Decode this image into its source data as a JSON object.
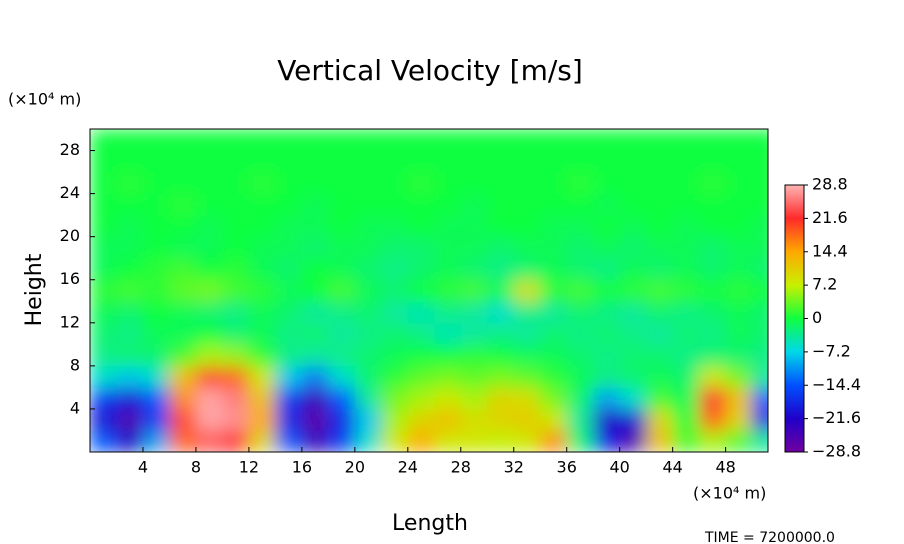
{
  "chart_data": {
    "type": "heatmap",
    "title": "Vertical Velocity [m/s]",
    "xlabel": "Length",
    "ylabel": "Height",
    "xunit": "(×10⁴ m)",
    "yunit": "(×10⁴ m)",
    "footer": "TIME = 7200000.0",
    "xlim": [
      0,
      51.2
    ],
    "ylim": [
      0,
      30
    ],
    "xticks": [
      4,
      8,
      12,
      16,
      20,
      24,
      28,
      32,
      36,
      40,
      44,
      48
    ],
    "yticks": [
      4,
      8,
      12,
      16,
      20,
      24,
      28
    ],
    "x": [
      1,
      3,
      5,
      7,
      9,
      11,
      13,
      15,
      17,
      19,
      21,
      23,
      25,
      27,
      29,
      31,
      33,
      35,
      37,
      39,
      41,
      43,
      45,
      47,
      49,
      51
    ],
    "y": [
      1,
      3,
      5,
      7,
      9,
      11,
      13,
      15,
      17,
      19,
      21,
      23,
      25,
      27,
      29
    ],
    "z": [
      [
        -14,
        -22,
        -10,
        18,
        24,
        22,
        10,
        -14,
        -24,
        -16,
        -6,
        8,
        14,
        8,
        8,
        7,
        8,
        16,
        -2,
        -18,
        -26,
        12,
        2,
        6,
        2,
        -4
      ],
      [
        -20,
        -26,
        -16,
        20,
        28,
        27,
        14,
        -18,
        -27,
        -18,
        -8,
        6,
        10,
        12,
        9,
        10,
        11,
        8,
        -4,
        -22,
        -20,
        10,
        0,
        18,
        10,
        -18
      ],
      [
        -16,
        -20,
        -14,
        16,
        28,
        26,
        12,
        -16,
        -24,
        -14,
        -4,
        4,
        6,
        8,
        6,
        10,
        9,
        4,
        -2,
        -10,
        -6,
        2,
        -1,
        22,
        12,
        -14
      ],
      [
        -6,
        -8,
        -6,
        12,
        20,
        18,
        8,
        -8,
        -12,
        -6,
        -2,
        1,
        3,
        4,
        3,
        4,
        3,
        1,
        -1,
        -3,
        -2,
        -1,
        -2,
        8,
        4,
        -4
      ],
      [
        -3,
        -2,
        -2,
        2,
        6,
        5,
        1,
        -3,
        -4,
        -3,
        -2,
        -1,
        0,
        0,
        1,
        0,
        -1,
        -1,
        -2,
        -3,
        -2,
        -2,
        -3,
        -2,
        -2,
        -3
      ],
      [
        -2,
        -3,
        -1,
        -1,
        0,
        -2,
        -1,
        -3,
        -2,
        -4,
        -3,
        -2,
        -3,
        -5,
        -4,
        -3,
        -4,
        -2,
        -3,
        -2,
        -3,
        -4,
        -2,
        -3,
        -1,
        -2
      ],
      [
        -1,
        -2,
        0,
        -1,
        -2,
        -3,
        -1,
        -2,
        -4,
        -3,
        -2,
        -4,
        -5,
        -3,
        -4,
        -6,
        -3,
        -4,
        -2,
        -3,
        -4,
        -2,
        -3,
        -2,
        -1,
        -2
      ],
      [
        1,
        2,
        1,
        3,
        4,
        2,
        1,
        -1,
        0,
        2,
        -1,
        -2,
        0,
        1,
        2,
        -1,
        9,
        1,
        2,
        0,
        1,
        2,
        1,
        0,
        1,
        0
      ],
      [
        -1,
        0,
        1,
        2,
        0,
        1,
        -1,
        -2,
        0,
        -1,
        -2,
        -3,
        -2,
        -1,
        -2,
        -3,
        -2,
        -1,
        -2,
        -3,
        -1,
        -2,
        -1,
        -2,
        -1,
        -2
      ],
      [
        -1,
        -1,
        0,
        -1,
        -1,
        0,
        -1,
        -1,
        -2,
        -1,
        -1,
        -2,
        -2,
        -1,
        -1,
        -2,
        -1,
        -1,
        -2,
        -1,
        -2,
        -1,
        -1,
        -2,
        -1,
        -1
      ],
      [
        0,
        -1,
        0,
        0,
        -1,
        0,
        0,
        -1,
        -1,
        0,
        -1,
        -1,
        0,
        -1,
        -1,
        0,
        0,
        -1,
        -1,
        0,
        -1,
        0,
        -1,
        0,
        0,
        -1
      ],
      [
        0,
        0,
        0,
        1,
        0,
        0,
        0,
        0,
        -1,
        0,
        0,
        0,
        0,
        0,
        -1,
        0,
        0,
        0,
        0,
        -1,
        0,
        0,
        0,
        0,
        0,
        0
      ],
      [
        0,
        1,
        0,
        0,
        0,
        0,
        1,
        0,
        0,
        0,
        0,
        0,
        1,
        0,
        0,
        0,
        0,
        0,
        1,
        0,
        0,
        0,
        0,
        1,
        0,
        0
      ],
      [
        0,
        0,
        0,
        0,
        0,
        0,
        0,
        0,
        0,
        0,
        0,
        0,
        0,
        0,
        0,
        0,
        0,
        0,
        0,
        0,
        0,
        0,
        0,
        0,
        0,
        0
      ],
      [
        0,
        0,
        0,
        0,
        0,
        0,
        0,
        0,
        0,
        0,
        0,
        0,
        0,
        0,
        0,
        0,
        0,
        0,
        0,
        0,
        0,
        0,
        0,
        0,
        0,
        0
      ]
    ],
    "clim": [
      -28.8,
      28.8
    ],
    "colormap": [
      "#7000a0",
      "#2000c8",
      "#0050ff",
      "#00d8e8",
      "#10ff40",
      "#c8f000",
      "#ffa800",
      "#ff2a2a",
      "#ffb4b4"
    ],
    "cticks": [
      {
        "value": 28.8,
        "label": "28.8"
      },
      {
        "value": 21.6,
        "label": "21.6"
      },
      {
        "value": 14.4,
        "label": "14.4"
      },
      {
        "value": 7.2,
        "label": "7.2"
      },
      0,
      {
        "value": -7.2,
        "label": "−7.2"
      },
      {
        "value": -14.4,
        "label": "−14.4"
      },
      {
        "value": -21.6,
        "label": "−21.6"
      },
      {
        "value": -28.8,
        "label": "−28.8"
      }
    ]
  }
}
